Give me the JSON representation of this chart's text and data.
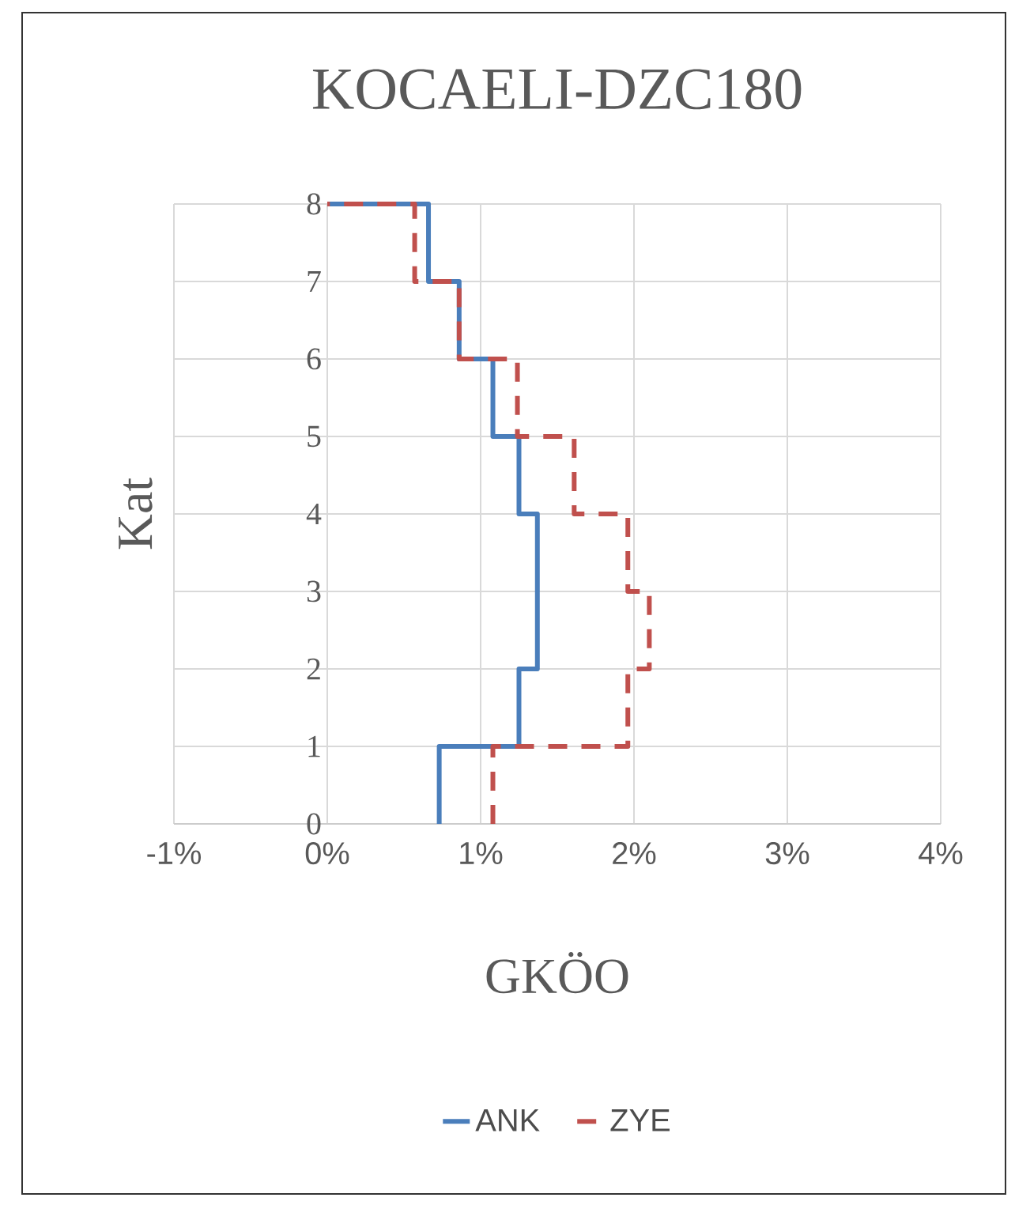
{
  "chart_data": {
    "type": "line",
    "title": "KOCAELI-DZC180",
    "xlabel": "GKÖO",
    "ylabel": "Kat",
    "series": [
      {
        "name": "ANK",
        "color": "#4a7ebb",
        "line_style": "solid",
        "x": [
          0.73,
          0.73,
          1.25,
          1.25,
          1.37,
          1.37,
          1.25,
          1.25,
          1.08,
          1.08,
          0.86,
          0.86,
          0.66,
          0.66,
          0
        ],
        "values": [
          0,
          1,
          1,
          2,
          2,
          4,
          4,
          5,
          5,
          6,
          6,
          7,
          7,
          8,
          8
        ]
      },
      {
        "name": "ZYE",
        "color": "#c0504d",
        "line_style": "dashed",
        "x": [
          1.08,
          1.08,
          1.96,
          1.96,
          2.1,
          2.1,
          1.96,
          1.96,
          1.61,
          1.61,
          1.24,
          1.24,
          0.86,
          0.86,
          0.57,
          0.57,
          0
        ],
        "values": [
          0,
          1,
          1,
          2,
          2,
          3,
          3,
          4,
          4,
          5,
          5,
          6,
          6,
          7,
          7,
          8,
          8
        ]
      }
    ],
    "xlim": [
      -1,
      4
    ],
    "ylim": [
      0,
      8
    ],
    "xticks": [
      {
        "value": -1,
        "label": "-1%"
      },
      {
        "value": 0,
        "label": "0%"
      },
      {
        "value": 1,
        "label": "1%"
      },
      {
        "value": 2,
        "label": "2%"
      },
      {
        "value": 3,
        "label": "3%"
      },
      {
        "value": 4,
        "label": "4%"
      }
    ],
    "yticks": [
      0,
      1,
      2,
      3,
      4,
      5,
      6,
      7,
      8
    ],
    "grid": true,
    "legend": "bottom"
  }
}
